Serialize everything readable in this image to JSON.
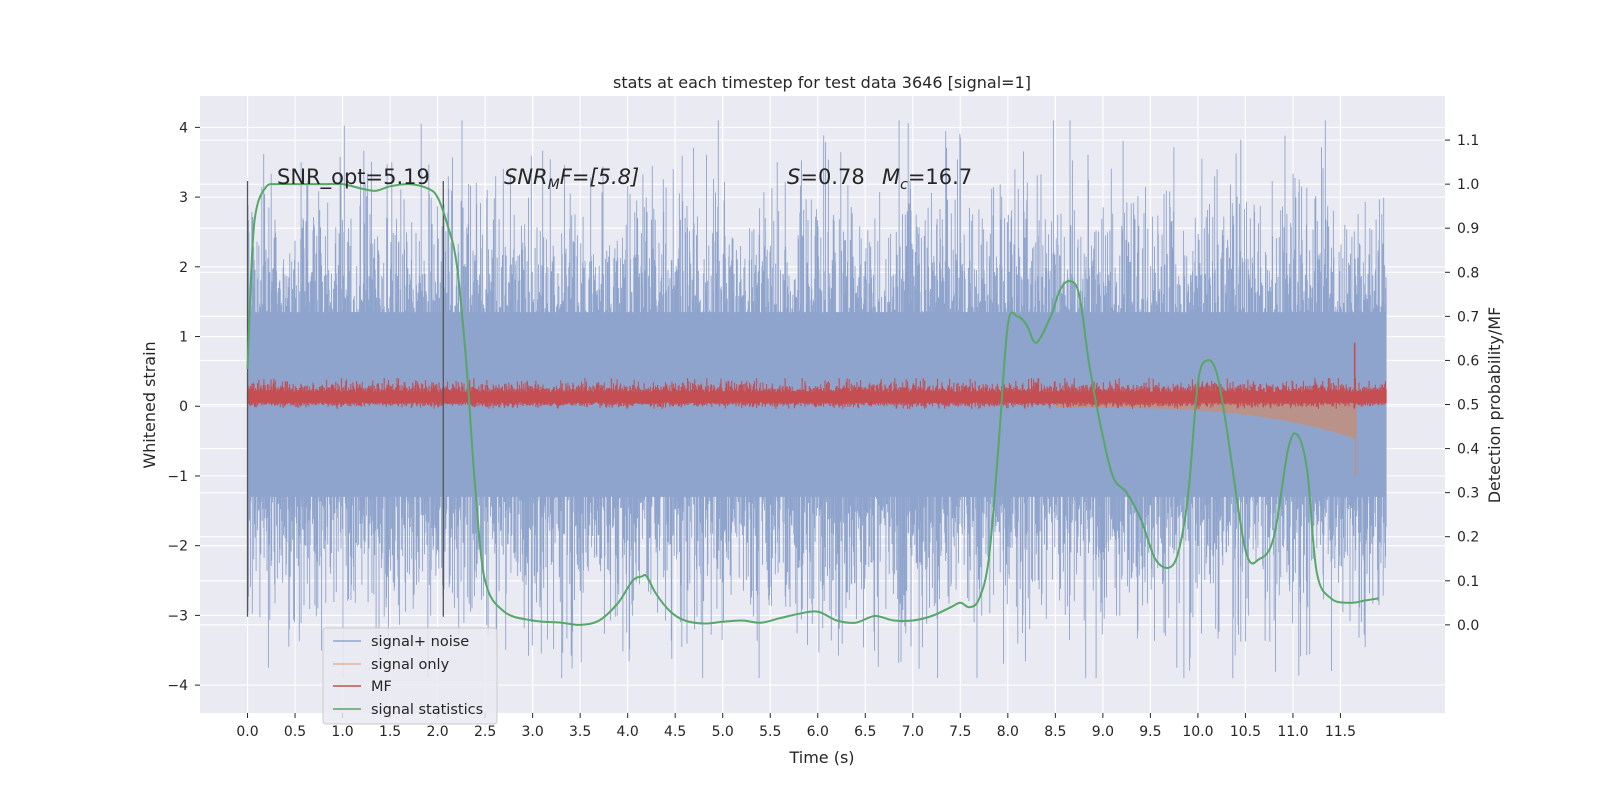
{
  "chart_data": {
    "type": "line",
    "title": "stats at each timestep for test data 3646 [signal=1]",
    "xlabel": "Time (s)",
    "ylabel_left": "Whitened strain",
    "ylabel_right": "Detection probability/MF",
    "xlim": [
      -0.5,
      12.6
    ],
    "ylim_left": [
      -4.4,
      4.45
    ],
    "ylim_right": [
      -0.2,
      1.2
    ],
    "x_ticks": [
      "0.0",
      "0.5",
      "1.0",
      "1.5",
      "2.0",
      "2.5",
      "3.0",
      "3.5",
      "4.0",
      "4.5",
      "5.0",
      "5.5",
      "6.0",
      "6.5",
      "7.0",
      "7.5",
      "8.0",
      "8.5",
      "9.0",
      "9.5",
      "10.0",
      "10.5",
      "11.0",
      "11.5"
    ],
    "y_ticks_left": [
      "4",
      "3",
      "2",
      "1",
      "0",
      "−1",
      "−2",
      "−3",
      "−4"
    ],
    "y_ticks_right": [
      "1.1",
      "1.0",
      "0.9",
      "0.8",
      "0.7",
      "0.6",
      "0.5",
      "0.4",
      "0.3",
      "0.2",
      "0.1",
      "0.0"
    ],
    "grid": true,
    "legend_position": "lower-left",
    "colors": {
      "background": "#eaeaf2",
      "signal_noise": "#8fa4cc",
      "signal_only": "#dd8452",
      "mf": "#c44e52",
      "statistics": "#55a868",
      "grid": "#ffffff",
      "markers": "#555555"
    },
    "annotations": {
      "snr_opt": "SNR_opt=5.19",
      "snr_mf_a": "SNR",
      "snr_mf_sub": "M",
      "snr_mf_b": "F=[5.8]",
      "s_sym": "S",
      "s_val": "=0.78",
      "mc_sym": "M",
      "mc_sub": "c",
      "mc_val": "=16.7"
    },
    "markers_x": [
      0.0,
      2.06
    ],
    "series": [
      {
        "name": "signal+ noise",
        "axis": "left",
        "x_range": [
          0.0,
          11.98
        ],
        "typical_abs": 2.0,
        "max": 4.1,
        "min": -3.9
      },
      {
        "name": "signal only",
        "axis": "left",
        "x_range": [
          8.5,
          11.66
        ],
        "min": -1.0,
        "max": 0.1
      },
      {
        "name": "MF",
        "axis": "right",
        "x_range": [
          0.0,
          11.98
        ],
        "min": 0.49,
        "max": 0.56,
        "spike": [
          11.65,
          0.64
        ]
      },
      {
        "name": "signal statistics",
        "axis": "right",
        "x": [
          0.0,
          0.05,
          0.1,
          0.2,
          0.3,
          0.45,
          0.6,
          0.8,
          1.0,
          1.2,
          1.35,
          1.5,
          1.7,
          1.9,
          2.0,
          2.1,
          2.2,
          2.3,
          2.4,
          2.5,
          2.7,
          3.0,
          3.3,
          3.5,
          3.7,
          3.9,
          4.05,
          4.15,
          4.2,
          4.3,
          4.45,
          4.6,
          4.8,
          5.0,
          5.2,
          5.4,
          5.6,
          5.8,
          6.0,
          6.2,
          6.4,
          6.6,
          6.8,
          7.0,
          7.2,
          7.4,
          7.5,
          7.6,
          7.7,
          7.8,
          7.9,
          8.0,
          8.1,
          8.2,
          8.3,
          8.45,
          8.55,
          8.65,
          8.75,
          8.85,
          8.95,
          9.1,
          9.25,
          9.4,
          9.55,
          9.7,
          9.8,
          9.9,
          10.0,
          10.1,
          10.2,
          10.3,
          10.5,
          10.65,
          10.8,
          10.95,
          11.05,
          11.15,
          11.25,
          11.4,
          11.6,
          11.75,
          11.9
        ],
        "y": [
          0.58,
          0.85,
          0.95,
          0.995,
          1.0,
          1.0,
          1.0,
          1.0,
          1.0,
          0.99,
          0.985,
          0.995,
          1.0,
          0.99,
          0.97,
          0.91,
          0.82,
          0.6,
          0.3,
          0.1,
          0.03,
          0.01,
          0.005,
          0.0,
          0.01,
          0.05,
          0.1,
          0.11,
          0.11,
          0.07,
          0.03,
          0.01,
          0.003,
          0.007,
          0.01,
          0.005,
          0.015,
          0.025,
          0.03,
          0.01,
          0.005,
          0.02,
          0.01,
          0.01,
          0.02,
          0.04,
          0.05,
          0.04,
          0.06,
          0.15,
          0.4,
          0.68,
          0.7,
          0.68,
          0.64,
          0.7,
          0.76,
          0.78,
          0.75,
          0.6,
          0.48,
          0.34,
          0.3,
          0.24,
          0.15,
          0.13,
          0.17,
          0.3,
          0.55,
          0.6,
          0.57,
          0.45,
          0.17,
          0.15,
          0.2,
          0.4,
          0.43,
          0.35,
          0.12,
          0.06,
          0.05,
          0.055,
          0.06
        ]
      }
    ]
  }
}
